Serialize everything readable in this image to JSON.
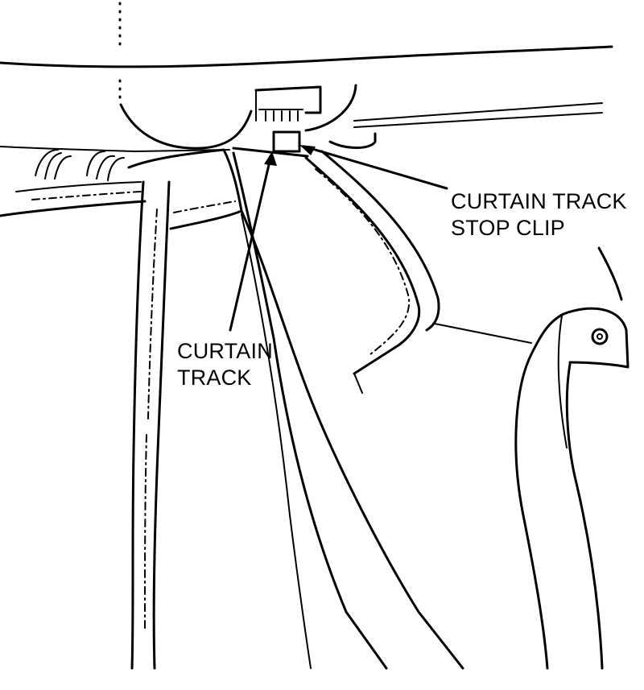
{
  "callouts": {
    "stop_clip": {
      "line1": "CURTAIN TRACK",
      "line2": "STOP CLIP"
    },
    "track": {
      "line1": "CURTAIN",
      "line2": "TRACK"
    }
  },
  "colors": {
    "ink": "#000000",
    "paper": "#ffffff"
  }
}
